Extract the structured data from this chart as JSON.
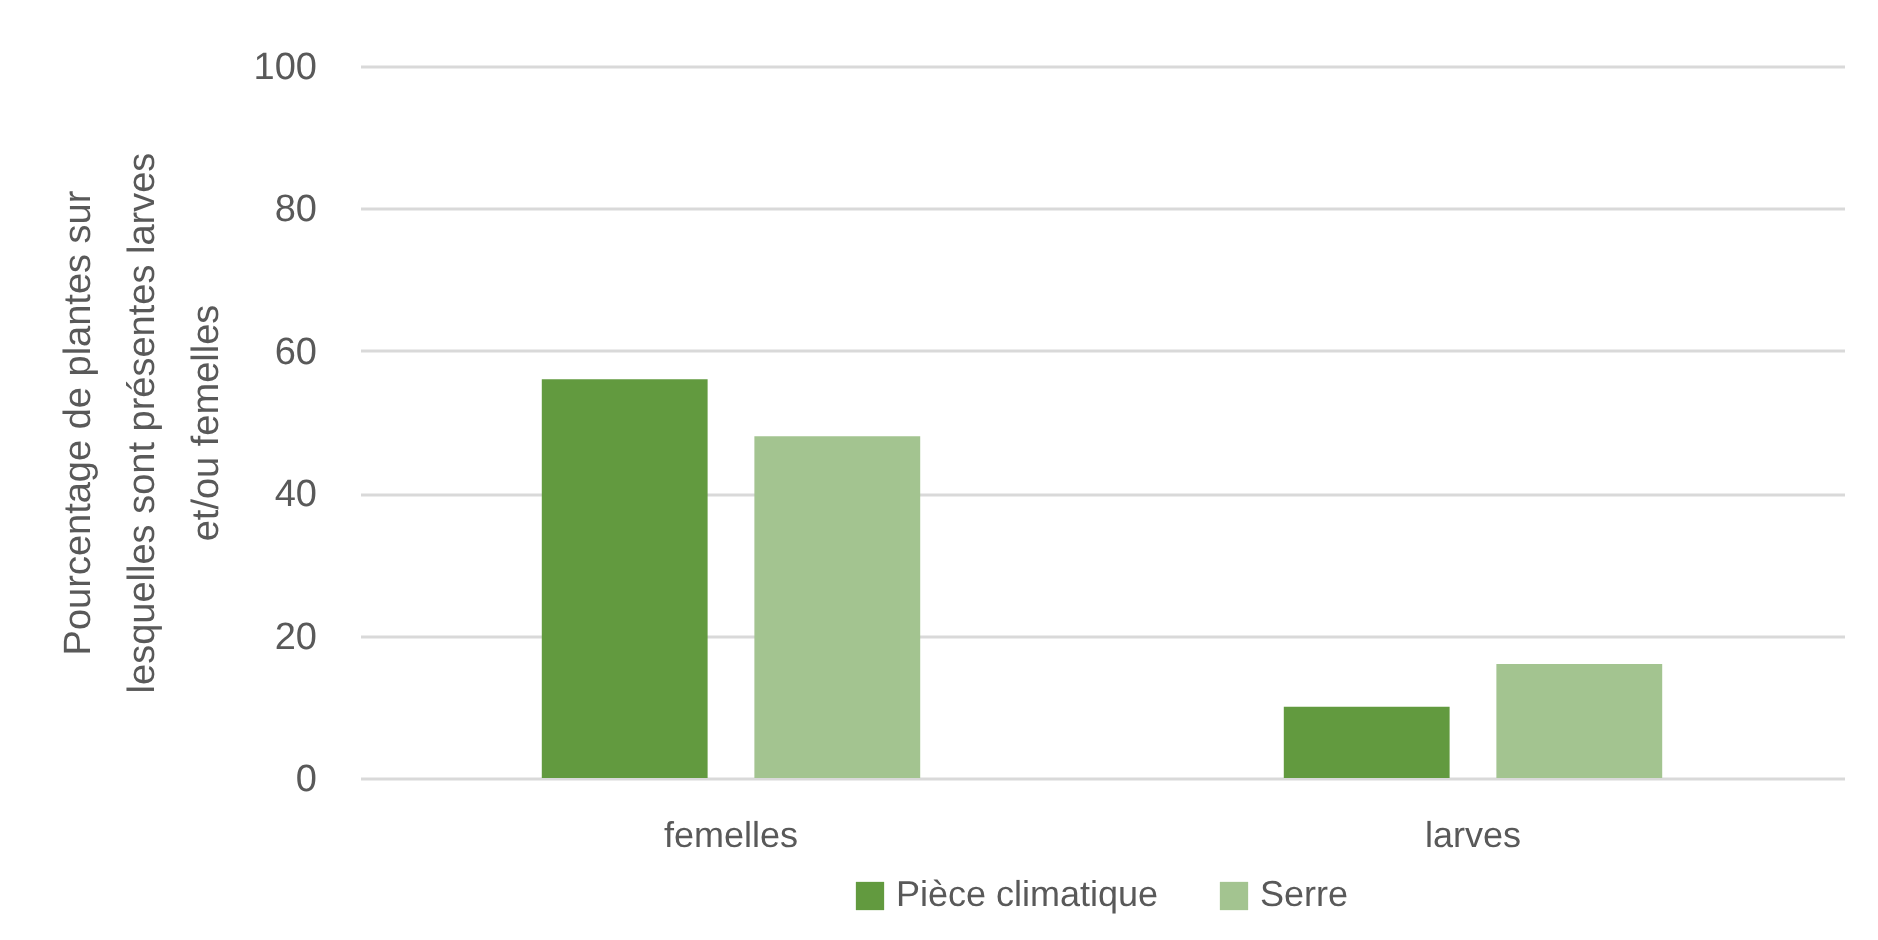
{
  "chart_data": {
    "type": "bar",
    "ylabel": "Pourcentage de plantes sur lesquelles sont présentes larves et/ou femelles",
    "categories": [
      "femelles",
      "larves"
    ],
    "series": [
      {
        "name": "Pièce climatique",
        "color": "#629a3f",
        "values": [
          56,
          10
        ]
      },
      {
        "name": "Serre",
        "color": "#a3c490",
        "values": [
          48,
          16
        ]
      }
    ],
    "ylim": [
      0,
      100
    ],
    "yticks": [
      0,
      20,
      40,
      60,
      80,
      100
    ],
    "grid": "y",
    "legend": "bottom"
  }
}
